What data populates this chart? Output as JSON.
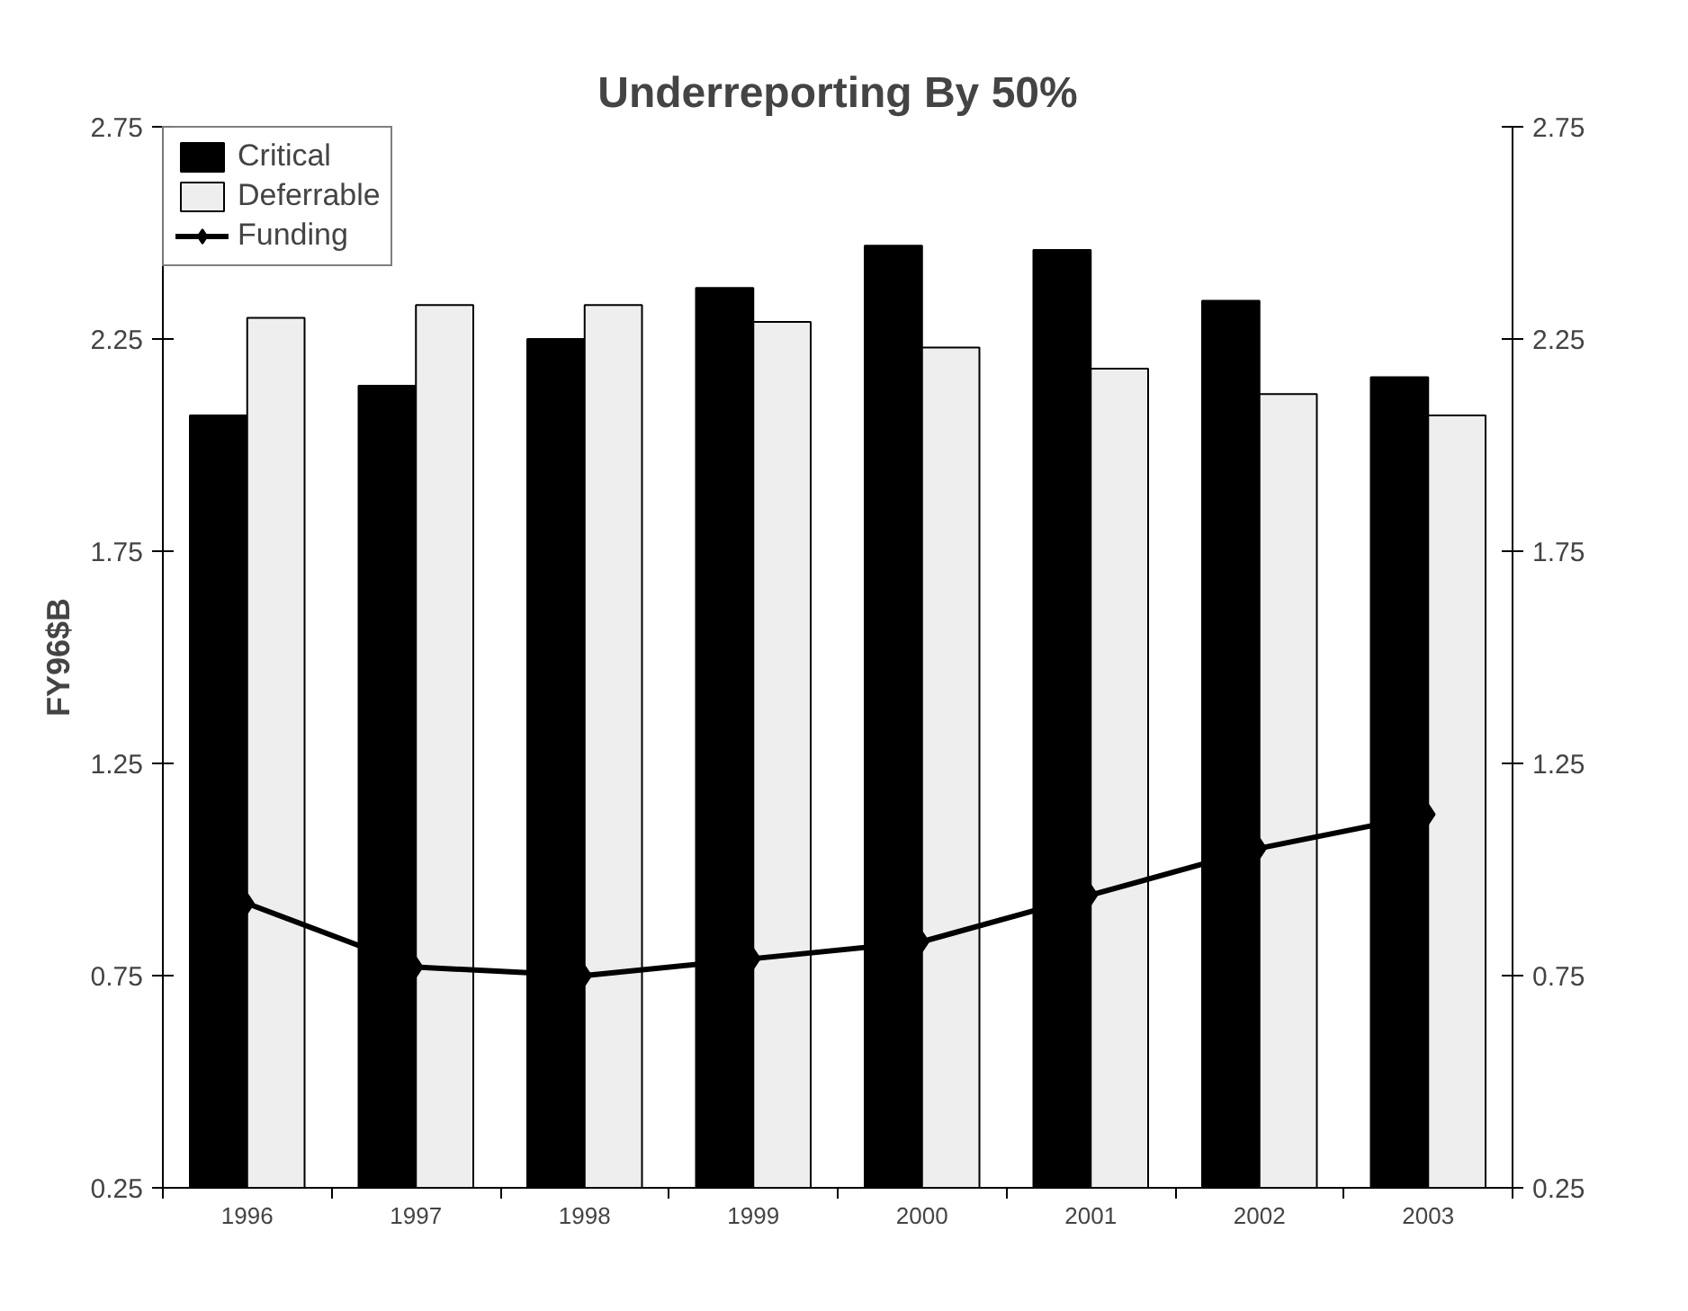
{
  "chart_data": {
    "type": "bar",
    "title": "Underreporting By 50%",
    "ylabel": "FY96$B",
    "categories": [
      "1996",
      "1997",
      "1998",
      "1999",
      "2000",
      "2001",
      "2002",
      "2003"
    ],
    "series": [
      {
        "name": "Critical",
        "color": "#000000",
        "values": [
          2.07,
          2.14,
          2.25,
          2.37,
          2.47,
          2.46,
          2.34,
          2.16
        ]
      },
      {
        "name": "Deferrable",
        "color": "#eeeeee",
        "values": [
          2.3,
          2.33,
          2.33,
          2.29,
          2.23,
          2.18,
          2.12,
          2.07
        ]
      },
      {
        "name": "Funding",
        "type": "line",
        "color": "#000000",
        "values": [
          0.92,
          0.77,
          0.75,
          0.79,
          0.83,
          0.94,
          1.05,
          1.13
        ]
      }
    ],
    "ylim": [
      0.25,
      2.75
    ],
    "yticks": [
      0.25,
      0.75,
      1.25,
      1.75,
      2.25,
      2.75
    ],
    "y2lim": [
      0.25,
      2.75
    ],
    "y2ticks": [
      0.25,
      0.75,
      1.25,
      1.75,
      2.25,
      2.75
    ],
    "grid": false,
    "legend": "top left",
    "marker": "diamond"
  }
}
